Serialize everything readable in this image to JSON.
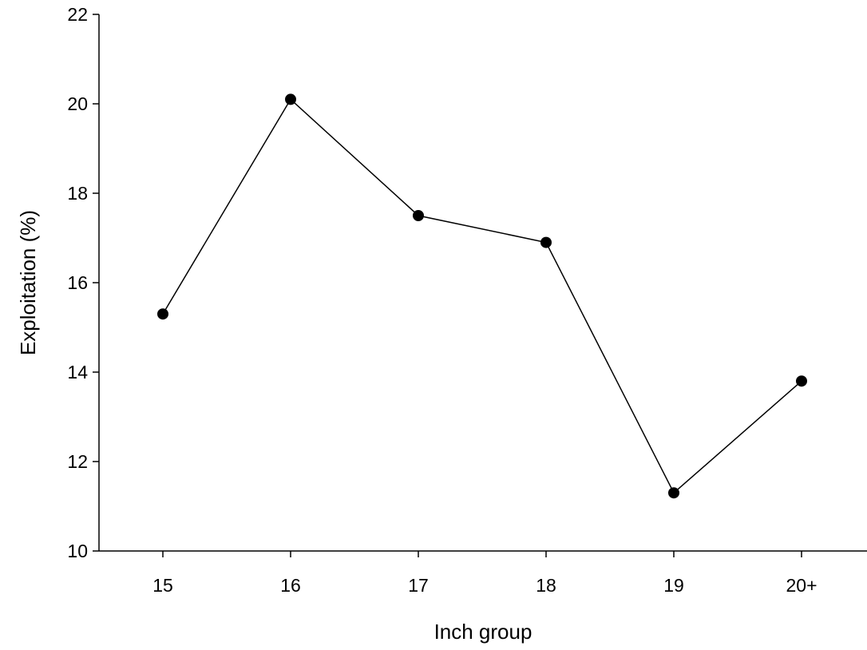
{
  "chart_data": {
    "type": "line",
    "categories": [
      "15",
      "16",
      "17",
      "18",
      "19",
      "20+"
    ],
    "series": [
      {
        "values": [
          15.3,
          20.1,
          17.5,
          16.9,
          11.3,
          13.8
        ]
      }
    ],
    "xlabel": "Inch group",
    "ylabel": "Exploitation (%)",
    "ylim": [
      10,
      22
    ],
    "yticks": [
      10,
      12,
      14,
      16,
      18,
      20,
      22
    ],
    "grid": false,
    "colors": {
      "line": "#000000",
      "marker": "#000000"
    }
  }
}
